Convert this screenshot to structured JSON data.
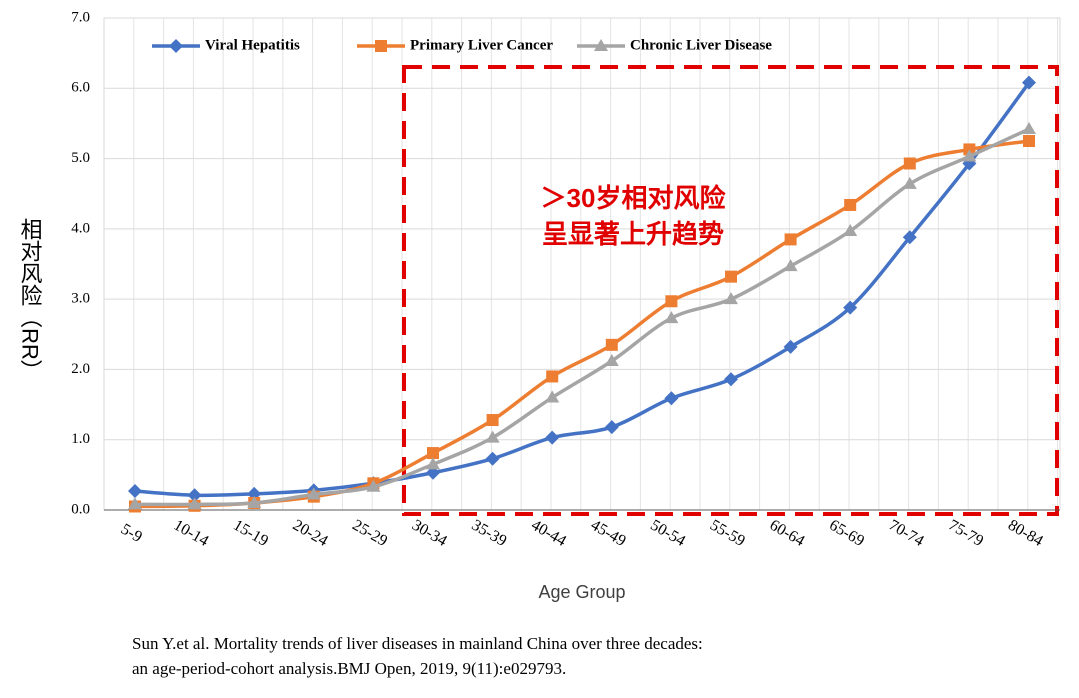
{
  "chart_data": {
    "type": "line",
    "y_label": "相对风险（RR）",
    "x_label": "Age Group",
    "categories": [
      "5-9",
      "10-14",
      "15-19",
      "20-24",
      "25-29",
      "30-34",
      "35-39",
      "40-44",
      "45-49",
      "50-54",
      "55-59",
      "60-64",
      "65-69",
      "70-74",
      "75-79",
      "80-84"
    ],
    "series": [
      {
        "name": "Viral Hepatitis",
        "color": "#4472c4",
        "marker": "diamond",
        "values": [
          0.27,
          0.21,
          0.23,
          0.28,
          0.38,
          0.53,
          0.73,
          1.03,
          1.18,
          1.59,
          1.86,
          2.32,
          2.88,
          3.88,
          4.93,
          6.08
        ]
      },
      {
        "name": "Primary Liver Cancer",
        "color": "#ed7d31",
        "marker": "square",
        "values": [
          0.05,
          0.06,
          0.1,
          0.19,
          0.38,
          0.81,
          1.28,
          1.9,
          2.35,
          2.97,
          3.32,
          3.85,
          4.34,
          4.93,
          5.13,
          5.25
        ]
      },
      {
        "name": "Chronic Liver Disease",
        "color": "#a5a5a5",
        "marker": "triangle",
        "values": [
          0.08,
          0.08,
          0.1,
          0.22,
          0.33,
          0.65,
          1.03,
          1.6,
          2.12,
          2.73,
          3.0,
          3.47,
          3.97,
          4.64,
          5.03,
          5.42
        ]
      }
    ],
    "ylim": [
      0,
      7
    ],
    "yticks": [
      {
        "value": 0,
        "label": "0.0"
      },
      {
        "value": 1,
        "label": "1.0"
      },
      {
        "value": 2,
        "label": "2.0"
      },
      {
        "value": 3,
        "label": "3.0"
      },
      {
        "value": 4,
        "label": "4.0"
      },
      {
        "value": 5,
        "label": "5.0"
      },
      {
        "value": 6,
        "label": "6.0"
      },
      {
        "value": 7,
        "label": "7.0"
      }
    ],
    "grid": true,
    "legend": "top",
    "annotations": [
      "＞30岁相对风险",
      "呈显著上升趋势"
    ],
    "source": [
      "Sun Y.et al. Mortality trends of liver diseases in mainland China over three decades:",
      "an age-period-cohort analysis.BMJ Open, 2019, 9(11):e029793."
    ]
  }
}
